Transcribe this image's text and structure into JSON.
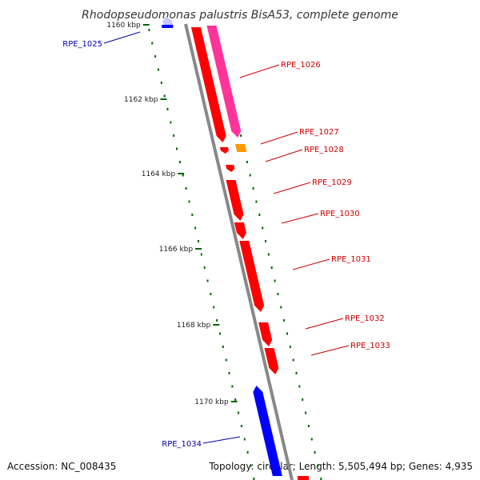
{
  "title": "Rhodopseudomonas palustris BisA53, complete genome",
  "footer": {
    "accession": "Accession: NC_008435",
    "info": "Topology: circular; Length: 5,505,494 bp; Genes: 4,935"
  },
  "colors": {
    "backbone": "#888888",
    "forward_gene": "#ff0000",
    "forward_gene_alt": "#ff3399",
    "orange_gene": "#ff9900",
    "reverse_gene": "#0000ff",
    "reverse_gene_light": "#c8c8ff",
    "tick": "#006600",
    "label_forward": "#cc0000",
    "label_reverse": "#0000aa"
  },
  "ticks": [
    {
      "label": "1160 kbp"
    },
    {
      "label": "1162 kbp"
    },
    {
      "label": "1164 kbp"
    },
    {
      "label": "1166 kbp"
    },
    {
      "label": "1168 kbp"
    },
    {
      "label": "1170 kbp"
    }
  ],
  "genes": [
    {
      "label": "RPE_1025",
      "strand": "reverse"
    },
    {
      "label": "RPE_1026",
      "strand": "forward"
    },
    {
      "label": "RPE_1027",
      "strand": "forward"
    },
    {
      "label": "RPE_1028",
      "strand": "forward"
    },
    {
      "label": "RPE_1029",
      "strand": "forward"
    },
    {
      "label": "RPE_1030",
      "strand": "forward"
    },
    {
      "label": "RPE_1031",
      "strand": "forward"
    },
    {
      "label": "RPE_1032",
      "strand": "forward"
    },
    {
      "label": "RPE_1033",
      "strand": "forward"
    },
    {
      "label": "RPE_1034",
      "strand": "reverse"
    }
  ]
}
